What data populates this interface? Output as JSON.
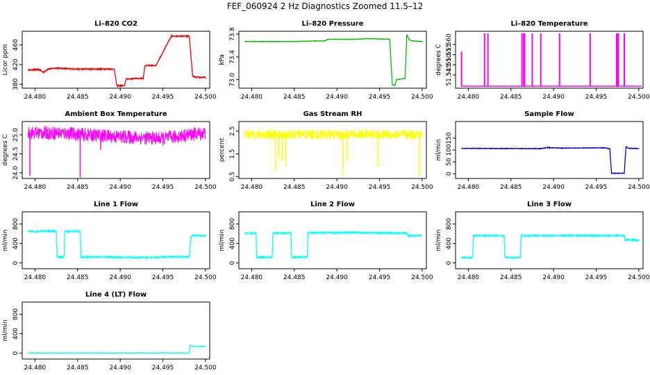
{
  "page_title": "FEF_060924  2 Hz Diagnostics Zoomed 11.5–12",
  "x_ticks": [
    "24.480",
    "24.485",
    "24.490",
    "24.495",
    "24.500"
  ],
  "xlim": [
    24.4785,
    24.5005
  ],
  "chart_data": [
    {
      "type": "line",
      "title": "Li–820 CO2",
      "ylabel": "Licor ppm",
      "color": "#ee0000",
      "ylim": [
        372,
        488
      ],
      "yticks": [
        "380",
        "420",
        "460"
      ],
      "ytick_values": [
        380,
        420,
        460
      ],
      "x": [
        24.4792,
        24.4805,
        24.481,
        24.4815,
        24.4825,
        24.4845,
        24.4875,
        24.4893,
        24.4896,
        24.4905,
        24.4907,
        24.4915,
        24.4917,
        24.4927,
        24.4929,
        24.494,
        24.4942,
        24.496,
        24.4981,
        24.4985,
        24.499,
        24.5
      ],
      "values": [
        409,
        410,
        404,
        411,
        413,
        411,
        411,
        411,
        377,
        377,
        391,
        391,
        392,
        392,
        418,
        418,
        419,
        478,
        478,
        396,
        394,
        394
      ],
      "noise": 1.3
    },
    {
      "type": "line",
      "title": "Li–820 Pressure",
      "ylabel": "kPa",
      "color": "#00bb00",
      "ylim": [
        72.85,
        73.85
      ],
      "yticks": [
        "73.0",
        "73.4",
        "73.8"
      ],
      "ytick_values": [
        73.0,
        73.4,
        73.8
      ],
      "x": [
        24.4792,
        24.485,
        24.4875,
        24.4885,
        24.489,
        24.4925,
        24.4935,
        24.4962,
        24.4965,
        24.4968,
        24.497,
        24.498,
        24.4982,
        24.4985,
        24.4988,
        24.5
      ],
      "values": [
        73.67,
        73.67,
        73.68,
        73.68,
        73.71,
        73.71,
        73.72,
        73.71,
        72.91,
        72.9,
        73.0,
        73.02,
        73.79,
        73.7,
        73.68,
        73.67
      ],
      "noise": 0.004
    },
    {
      "type": "spikes",
      "title": "Li–820 Temperature",
      "ylabel": "degrees C",
      "color": "#ff00ff",
      "ylim": [
        51.5385,
        51.5665
      ],
      "yticks": [
        "51.545",
        "51.550",
        "51.555",
        "51.560"
      ],
      "ytick_values": [
        51.545,
        51.55,
        51.555,
        51.56
      ],
      "baseline": 51.5395,
      "spike_x": [
        24.4792,
        24.4819,
        24.4823,
        24.4863,
        24.4865,
        24.4866,
        24.4875,
        24.4885,
        24.4907,
        24.4943,
        24.4974,
        24.4975,
        24.4976,
        24.4983
      ],
      "spike_values": [
        51.5565,
        51.5655,
        51.5655,
        51.5655,
        51.5655,
        51.5655,
        51.5655,
        51.5655,
        51.5655,
        51.5655,
        51.5655,
        51.5655,
        51.5655,
        51.5655
      ]
    },
    {
      "type": "noise",
      "title": "Ambient Box Temperature",
      "ylabel": "degrees C",
      "color": "#ff00ff",
      "ylim": [
        23.85,
        25.35
      ],
      "yticks": [
        "24.0",
        "24.5",
        "25.0"
      ],
      "ytick_values": [
        24.0,
        24.5,
        25.0
      ],
      "x": [
        24.4792,
        24.483,
        24.486,
        24.49,
        24.495,
        24.498,
        24.5
      ],
      "values": [
        25.05,
        25.05,
        25.0,
        24.95,
        24.9,
        25.0,
        25.05
      ],
      "noise": 0.18,
      "dips_x": [
        24.4794,
        24.4853,
        24.4877
      ],
      "dips_values": [
        23.92,
        23.88,
        24.6
      ]
    },
    {
      "type": "noise",
      "title": "Gas Stream RH",
      "ylabel": "percent",
      "color": "#ffff00",
      "ylim": [
        0.42,
        2.92
      ],
      "yticks": [
        "0.5",
        "1.5",
        "2.5"
      ],
      "ytick_values": [
        0.5,
        1.5,
        2.5
      ],
      "x": [
        24.4792,
        24.5
      ],
      "values": [
        2.35,
        2.35
      ],
      "noise": 0.22,
      "dips_x": [
        24.4828,
        24.4832,
        24.4836,
        24.484,
        24.4907,
        24.4912,
        24.4948,
        24.4997
      ],
      "dips_values": [
        0.75,
        1.25,
        1.2,
        0.95,
        0.55,
        1.2,
        0.95,
        0.55
      ]
    },
    {
      "type": "line",
      "title": "Sample Flow",
      "ylabel": "ml/min",
      "color": "#0000cc",
      "ylim": [
        -20,
        220
      ],
      "yticks": [
        "0",
        "50",
        "100",
        "150"
      ],
      "ytick_values": [
        0,
        50,
        100,
        150
      ],
      "x": [
        24.4792,
        24.485,
        24.4885,
        24.4893,
        24.491,
        24.496,
        24.4966,
        24.4968,
        24.4983,
        24.4985,
        24.4988,
        24.5
      ],
      "values": [
        107,
        106,
        106,
        110,
        108,
        109,
        105,
        2,
        2,
        115,
        107,
        106
      ],
      "noise": 1.2
    },
    {
      "type": "line",
      "title": "Line 1 Flow",
      "ylabel": "ml/min",
      "color": "#00ffff",
      "ylim": [
        -120,
        1050
      ],
      "yticks": [
        "0",
        "400",
        "800"
      ],
      "ytick_values": [
        0,
        400,
        800
      ],
      "x": [
        24.4792,
        24.4825,
        24.4826,
        24.4834,
        24.4835,
        24.4853,
        24.4854,
        24.488,
        24.492,
        24.4981,
        24.4983,
        24.5
      ],
      "values": [
        650,
        650,
        120,
        120,
        650,
        650,
        120,
        120,
        110,
        130,
        560,
        560
      ],
      "noise": 18
    },
    {
      "type": "line",
      "title": "Line 2 Flow",
      "ylabel": "ml/min",
      "color": "#00ffff",
      "ylim": [
        -120,
        1050
      ],
      "yticks": [
        "0",
        "400",
        "800"
      ],
      "ytick_values": [
        0,
        400,
        800
      ],
      "x": [
        24.4792,
        24.4805,
        24.4806,
        24.4824,
        24.4825,
        24.4846,
        24.4847,
        24.4865,
        24.4866,
        24.493,
        24.4982,
        24.4983,
        24.5
      ],
      "values": [
        610,
        610,
        120,
        120,
        610,
        610,
        120,
        120,
        620,
        620,
        610,
        560,
        560
      ],
      "noise": 18
    },
    {
      "type": "line",
      "title": "Line 3 Flow",
      "ylabel": "ml/min",
      "color": "#00ffff",
      "ylim": [
        -120,
        1050
      ],
      "yticks": [
        "0",
        "400",
        "800"
      ],
      "ytick_values": [
        0,
        400,
        800
      ],
      "x": [
        24.4792,
        24.4805,
        24.4806,
        24.4842,
        24.4843,
        24.4861,
        24.4862,
        24.4983,
        24.4984,
        24.5
      ],
      "values": [
        110,
        110,
        560,
        560,
        110,
        110,
        560,
        560,
        470,
        470
      ],
      "noise": 18
    },
    {
      "type": "line",
      "title": "Line 4 (LT) Flow",
      "ylabel": "ml/min",
      "color": "#00ffff",
      "ylim": [
        -120,
        1050
      ],
      "yticks": [
        "0",
        "400",
        "800"
      ],
      "ytick_values": [
        0,
        400,
        800
      ],
      "x": [
        24.4792,
        24.4981,
        24.4982,
        24.4985,
        24.5
      ],
      "values": [
        5,
        5,
        170,
        140,
        140
      ],
      "noise": 4
    }
  ]
}
